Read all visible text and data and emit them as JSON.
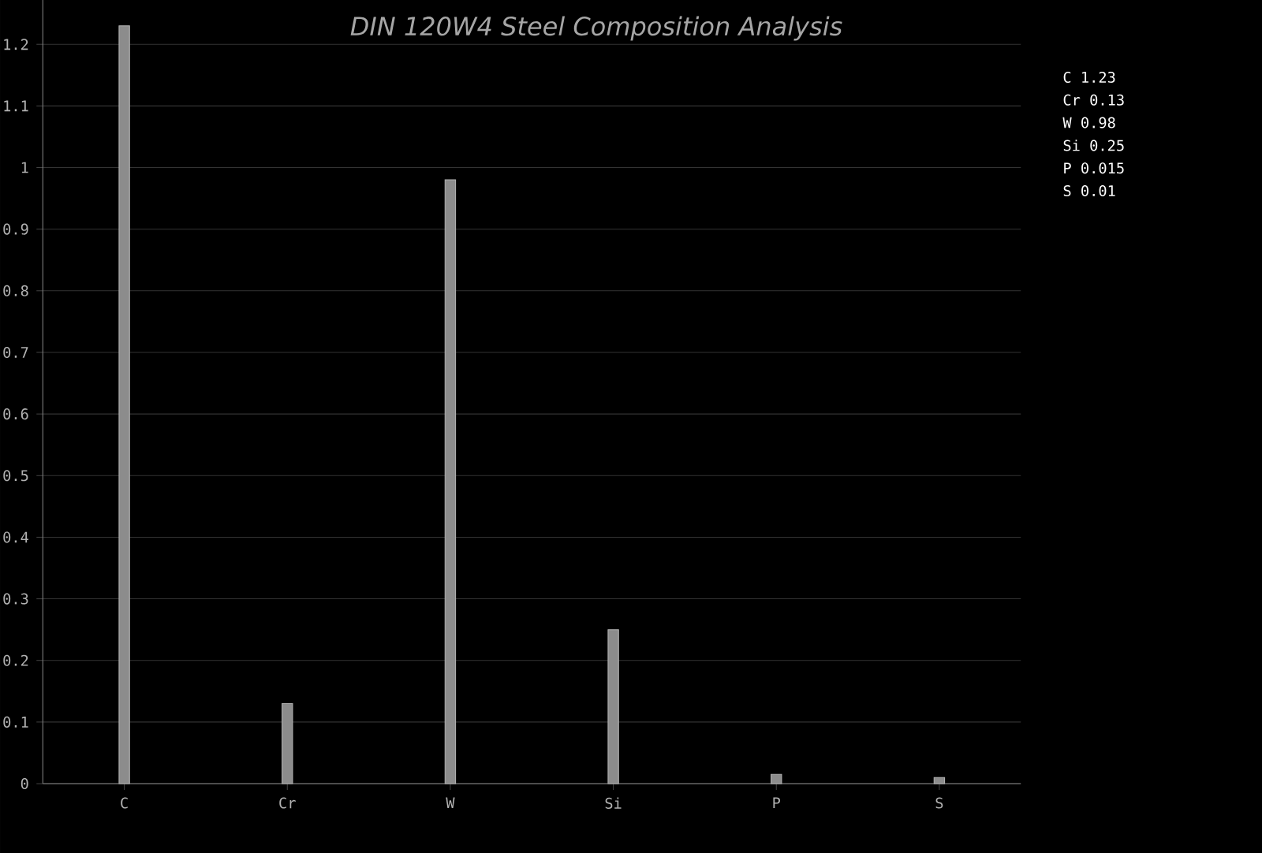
{
  "chart_data": {
    "type": "bar",
    "title": "DIN 120W4 Steel Composition Analysis",
    "categories": [
      "C",
      "Cr",
      "W",
      "Si",
      "P",
      "S"
    ],
    "values": [
      1.23,
      0.13,
      0.98,
      0.25,
      0.015,
      0.01
    ],
    "color": "#8c8c8c",
    "ylim": [
      0,
      1.3
    ],
    "yticks": [
      0,
      0.1,
      0.2,
      0.3,
      0.4,
      0.5,
      0.6,
      0.7,
      0.8,
      0.9,
      1,
      1.1,
      1.2
    ],
    "grid": "y",
    "annotations": [
      "C 1.23",
      "Cr 0.13",
      "W 0.98",
      "Si 0.25",
      "P 0.015",
      "S 0.01"
    ]
  }
}
